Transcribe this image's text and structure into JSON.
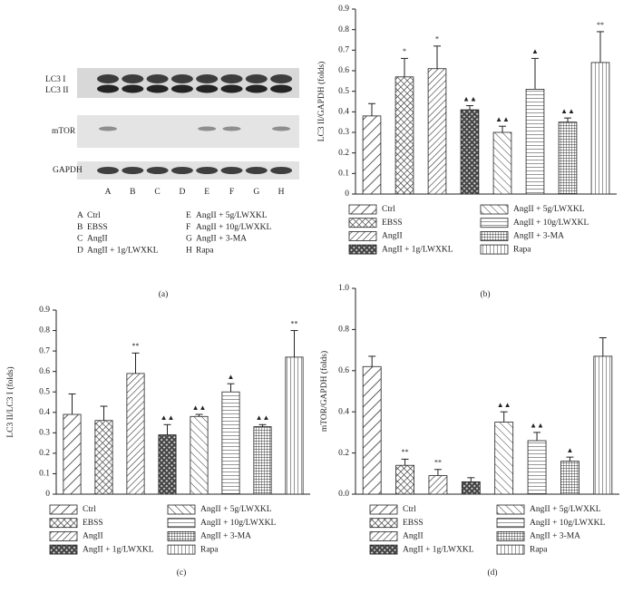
{
  "blot": {
    "row_labels": [
      "LC3 I",
      "LC3 II",
      "mTOR",
      "GAPDH"
    ],
    "lanes": [
      "A",
      "B",
      "C",
      "D",
      "E",
      "F",
      "G",
      "H"
    ],
    "legend": [
      {
        "lane": "A",
        "label": "Ctrl"
      },
      {
        "lane": "B",
        "label": "EBSS"
      },
      {
        "lane": "C",
        "label": "AngII"
      },
      {
        "lane": "D",
        "label": "AngII + 1g/LWXKL"
      },
      {
        "lane": "E",
        "label": "AngII + 5g/LWXKL"
      },
      {
        "lane": "F",
        "label": "AngII + 10g/LWXKL"
      },
      {
        "lane": "G",
        "label": "AngII + 3-MA"
      },
      {
        "lane": "H",
        "label": "Rapa"
      }
    ],
    "caption": "(a)"
  },
  "chart_data": [
    {
      "type": "bar",
      "caption": "(b)",
      "y_label": "LC3 II/GAPDH (folds)",
      "categories": [
        "Ctrl",
        "EBSS",
        "AngII",
        "AngII + 1g/LWXKL",
        "AngII + 5g/LWXKL",
        "AngII + 10g/LWXKL",
        "AngII + 3-MA",
        "Rapa"
      ],
      "patterns": [
        "diag",
        "cross",
        "diag-dense",
        "check",
        "back",
        "horiz",
        "grid",
        "vert"
      ],
      "values": [
        0.38,
        0.57,
        0.61,
        0.41,
        0.3,
        0.51,
        0.35,
        0.64
      ],
      "errors": [
        0.06,
        0.09,
        0.11,
        0.02,
        0.03,
        0.15,
        0.02,
        0.15
      ],
      "annotations": [
        null,
        "*",
        "*",
        "▲▲",
        "▲▲",
        "▲",
        "▲▲",
        "**"
      ],
      "ylim": [
        0,
        0.9
      ],
      "yticks": [
        0,
        0.1,
        0.2,
        0.3,
        0.4,
        0.5,
        0.6,
        0.7,
        0.8,
        0.9
      ]
    },
    {
      "type": "bar",
      "caption": "(c)",
      "y_label": "LC3 II/LC3 I (folds)",
      "categories": [
        "Ctrl",
        "EBSS",
        "AngII",
        "AngII + 1g/LWXKL",
        "AngII + 5g/LWXKL",
        "AngII + 10g/LWXKL",
        "AngII + 3-MA",
        "Rapa"
      ],
      "patterns": [
        "diag",
        "cross",
        "diag-dense",
        "check",
        "back",
        "horiz",
        "grid",
        "vert"
      ],
      "values": [
        0.39,
        0.36,
        0.59,
        0.29,
        0.38,
        0.5,
        0.33,
        0.67
      ],
      "errors": [
        0.1,
        0.07,
        0.1,
        0.05,
        0.01,
        0.04,
        0.01,
        0.13
      ],
      "annotations": [
        null,
        null,
        "**",
        "▲▲",
        "▲▲",
        "▲",
        "▲▲",
        "**"
      ],
      "ylim": [
        0,
        0.9
      ],
      "yticks": [
        0,
        0.1,
        0.2,
        0.3,
        0.4,
        0.5,
        0.6,
        0.7,
        0.8,
        0.9
      ]
    },
    {
      "type": "bar",
      "caption": "(d)",
      "y_label": "mTOR/GAPDH (folds)",
      "categories": [
        "Ctrl",
        "EBSS",
        "AngII",
        "AngII + 1g/LWXKL",
        "AngII + 5g/LWXKL",
        "AngII + 10g/LWXKL",
        "AngII + 3-MA",
        "Rapa"
      ],
      "patterns": [
        "diag",
        "cross",
        "diag-dense",
        "check",
        "back",
        "horiz",
        "grid",
        "vert"
      ],
      "values": [
        0.62,
        0.14,
        0.09,
        0.06,
        0.35,
        0.26,
        0.16,
        0.67
      ],
      "errors": [
        0.05,
        0.03,
        0.03,
        0.02,
        0.05,
        0.04,
        0.02,
        0.09
      ],
      "annotations": [
        null,
        "**",
        "**",
        null,
        "▲▲",
        "▲▲",
        "▲",
        null
      ],
      "ylim": [
        0,
        1.0
      ],
      "yticks": [
        {
          "value": 0,
          "label": "0.0"
        },
        0.2,
        0.4,
        0.6,
        0.8,
        {
          "value": 1.0,
          "label": "1.0"
        }
      ]
    }
  ]
}
